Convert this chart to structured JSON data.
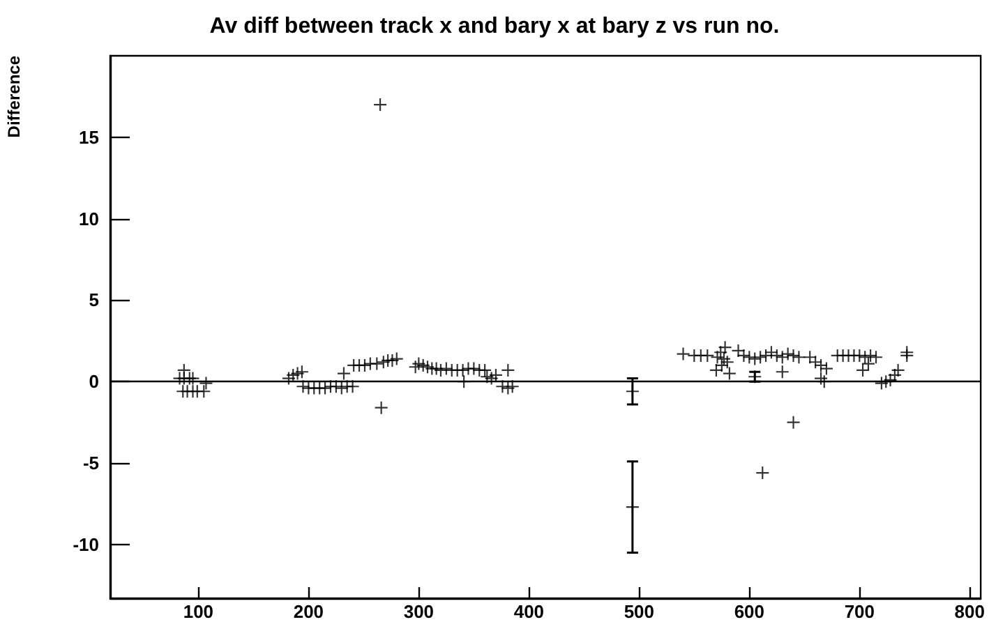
{
  "chart_data": {
    "type": "scatter",
    "title": "Av diff between track x and bary x at bary z vs run no.",
    "ylabel": "Difference",
    "xlim": [
      20,
      810
    ],
    "xticks": [
      100,
      200,
      300,
      400,
      500,
      600,
      700,
      800
    ],
    "ylim": [
      -13.3,
      20
    ],
    "yticks": [
      -10,
      -5,
      0,
      5,
      10,
      15
    ],
    "grid": false,
    "marker": "cross",
    "ref_lines": [
      {
        "axis": "y",
        "value": 0,
        "label": null
      }
    ],
    "series": [
      {
        "color": "#000000",
        "x": [
          83,
          87,
          87,
          92,
          95,
          86,
          90,
          95,
          99,
          105,
          107,
          182,
          186,
          190,
          194,
          195,
          200,
          205,
          210,
          215,
          220,
          225,
          230,
          235,
          240,
          232,
          241,
          246,
          251,
          256,
          262,
          268,
          272,
          276,
          280,
          266,
          265,
          297,
          300,
          304,
          308,
          312,
          316,
          320,
          325,
          330,
          335,
          340,
          345,
          350,
          355,
          360,
          341,
          362,
          366,
          370,
          381,
          376,
          381,
          385,
          494,
          494,
          540,
          550,
          556,
          562,
          571,
          574,
          577,
          580,
          575,
          570,
          582,
          578,
          590,
          595,
          600,
          605,
          610,
          605,
          612,
          615,
          620,
          625,
          630,
          635,
          640,
          645,
          630,
          640,
          655,
          660,
          665,
          670,
          665,
          668,
          680,
          685,
          690,
          695,
          700,
          705,
          710,
          715,
          703,
          708,
          720,
          724,
          728,
          732,
          735,
          743,
          743
        ],
        "values": [
          0.2,
          0.7,
          0.2,
          0.2,
          0.2,
          -0.6,
          -0.6,
          -0.6,
          -0.6,
          -0.6,
          -0.1,
          0.2,
          0.4,
          0.5,
          0.6,
          -0.3,
          -0.4,
          -0.4,
          -0.4,
          -0.4,
          -0.3,
          -0.3,
          -0.4,
          -0.3,
          -0.3,
          0.5,
          1.0,
          1.0,
          1.0,
          1.1,
          1.1,
          1.2,
          1.3,
          1.3,
          1.4,
          -1.6,
          17.0,
          0.9,
          1.1,
          1.0,
          0.9,
          0.8,
          0.8,
          0.7,
          0.8,
          0.7,
          0.7,
          0.7,
          0.8,
          0.8,
          0.7,
          0.7,
          0.0,
          0.3,
          0.2,
          0.4,
          0.7,
          -0.3,
          -0.4,
          -0.3,
          -0.6,
          -7.7,
          1.7,
          1.6,
          1.6,
          1.6,
          1.5,
          1.8,
          1.4,
          1.2,
          1.0,
          0.7,
          0.5,
          2.1,
          1.9,
          1.6,
          1.5,
          1.4,
          1.5,
          0.3,
          -5.6,
          1.6,
          1.8,
          1.6,
          1.5,
          1.7,
          1.6,
          1.5,
          0.6,
          -2.5,
          1.5,
          1.2,
          1.0,
          0.8,
          0.2,
          0.0,
          1.6,
          1.6,
          1.6,
          1.6,
          1.6,
          1.5,
          1.6,
          1.5,
          0.7,
          1.1,
          -0.1,
          0.0,
          0.1,
          0.4,
          0.7,
          1.6,
          1.8
        ],
        "errors": [
          null,
          null,
          null,
          null,
          null,
          null,
          null,
          null,
          null,
          null,
          null,
          null,
          null,
          null,
          null,
          null,
          null,
          null,
          null,
          null,
          null,
          null,
          null,
          null,
          null,
          null,
          null,
          null,
          null,
          null,
          null,
          null,
          null,
          null,
          null,
          null,
          null,
          null,
          null,
          null,
          null,
          null,
          null,
          null,
          null,
          null,
          null,
          null,
          null,
          null,
          null,
          null,
          null,
          null,
          null,
          null,
          null,
          null,
          null,
          null,
          [
            -1.4,
            0.2
          ],
          [
            -10.5,
            -4.9
          ],
          null,
          null,
          null,
          null,
          null,
          null,
          null,
          null,
          null,
          null,
          null,
          null,
          null,
          null,
          null,
          null,
          null,
          [
            0.0,
            0.6
          ],
          null,
          null,
          null,
          null,
          null,
          null,
          null,
          null,
          null,
          null,
          null,
          null,
          null,
          null,
          null,
          null,
          null,
          null,
          null,
          null,
          null,
          null,
          null,
          null,
          null,
          null,
          null,
          null,
          null,
          null,
          null,
          null,
          null
        ]
      }
    ]
  }
}
